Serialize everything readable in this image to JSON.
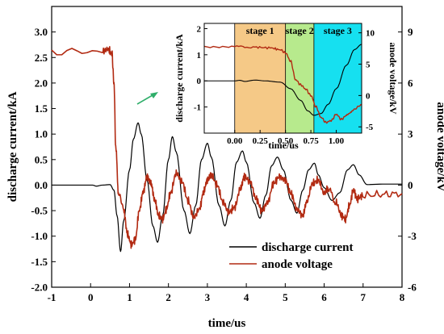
{
  "chart_data": {
    "type": "line",
    "xlabel": "time/us",
    "ylabel_left": "discharge current/kA",
    "ylabel_right": "anode voltage/kV",
    "xlim": [
      -1,
      8
    ],
    "ylim_left": [
      -2.0,
      3.5
    ],
    "ylim_right": [
      -6,
      10.5
    ],
    "x_ticks": [
      "-1",
      "0",
      "1",
      "2",
      "3",
      "4",
      "5",
      "6",
      "7",
      "8"
    ],
    "y_left_ticks": [
      "-2.0",
      "-1.5",
      "-1.0",
      "-0.5",
      "0.0",
      "0.5",
      "1.0",
      "1.5",
      "2.0",
      "2.5",
      "3.0"
    ],
    "y_right_ticks": [
      "-6",
      "-3",
      "0",
      "3",
      "6",
      "9"
    ],
    "legend": {
      "placement": "lower-right",
      "entries": [
        {
          "label": "discharge current",
          "color": "#000000"
        },
        {
          "label": "anode voltage",
          "color": "#b22a12"
        }
      ]
    },
    "series": [
      {
        "name": "discharge current",
        "axis": "left",
        "color": "#000000",
        "points": [
          [
            -1,
            0
          ],
          [
            0.05,
            0
          ],
          [
            0.15,
            -0.02
          ],
          [
            0.3,
            0
          ],
          [
            0.5,
            0.01
          ],
          [
            0.6,
            -0.1
          ],
          [
            0.68,
            -0.6
          ],
          [
            0.77,
            -1.3
          ],
          [
            0.85,
            -0.7
          ],
          [
            1.0,
            0.3
          ],
          [
            1.1,
            0.9
          ],
          [
            1.22,
            1.22
          ],
          [
            1.3,
            1.0
          ],
          [
            1.45,
            0.1
          ],
          [
            1.6,
            -0.8
          ],
          [
            1.72,
            -1.12
          ],
          [
            1.85,
            -0.6
          ],
          [
            2.0,
            0.5
          ],
          [
            2.1,
            0.95
          ],
          [
            2.2,
            0.65
          ],
          [
            2.4,
            -0.5
          ],
          [
            2.55,
            -0.95
          ],
          [
            2.7,
            -0.4
          ],
          [
            2.85,
            0.5
          ],
          [
            3.0,
            0.82
          ],
          [
            3.1,
            0.55
          ],
          [
            3.3,
            -0.4
          ],
          [
            3.45,
            -0.8
          ],
          [
            3.6,
            -0.3
          ],
          [
            3.75,
            0.45
          ],
          [
            3.9,
            0.67
          ],
          [
            4.0,
            0.45
          ],
          [
            4.2,
            -0.35
          ],
          [
            4.35,
            -0.65
          ],
          [
            4.5,
            -0.2
          ],
          [
            4.65,
            0.38
          ],
          [
            4.8,
            0.55
          ],
          [
            4.95,
            0.3
          ],
          [
            5.15,
            -0.3
          ],
          [
            5.3,
            -0.55
          ],
          [
            5.45,
            -0.1
          ],
          [
            5.6,
            0.3
          ],
          [
            5.75,
            0.43
          ],
          [
            5.85,
            0.2
          ],
          [
            6.0,
            -0.05
          ],
          [
            6.2,
            -0.3
          ],
          [
            6.4,
            -0.15
          ],
          [
            6.6,
            0.3
          ],
          [
            6.75,
            0.4
          ],
          [
            6.9,
            0.2
          ],
          [
            7.1,
            0.01
          ],
          [
            7.5,
            0.02
          ],
          [
            8,
            0.02
          ]
        ]
      },
      {
        "name": "anode voltage",
        "axis": "right",
        "color": "#b22a12",
        "points": [
          [
            -1,
            7.85
          ],
          [
            0.3,
            7.85
          ],
          [
            0.45,
            8.0
          ],
          [
            0.55,
            7.7
          ],
          [
            0.6,
            6.0
          ],
          [
            0.65,
            2.0
          ],
          [
            0.72,
            -0.5
          ],
          [
            0.85,
            -1.5
          ],
          [
            0.95,
            -2.9
          ],
          [
            1.05,
            -3.5
          ],
          [
            1.15,
            -3.2
          ],
          [
            1.25,
            -1.5
          ],
          [
            1.35,
            -0.4
          ],
          [
            1.45,
            0.5
          ],
          [
            1.55,
            0.1
          ],
          [
            1.65,
            -0.9
          ],
          [
            1.75,
            -1.8
          ],
          [
            1.85,
            -2.0
          ],
          [
            1.95,
            -1.4
          ],
          [
            2.05,
            -0.5
          ],
          [
            2.2,
            0.7
          ],
          [
            2.35,
            0.2
          ],
          [
            2.5,
            -0.9
          ],
          [
            2.65,
            -1.9
          ],
          [
            2.8,
            -1.4
          ],
          [
            2.9,
            -0.4
          ],
          [
            3.0,
            0.3
          ],
          [
            3.1,
            0.6
          ],
          [
            3.25,
            0
          ],
          [
            3.4,
            -1.0
          ],
          [
            3.55,
            -1.6
          ],
          [
            3.7,
            -1.3
          ],
          [
            3.85,
            -0.2
          ],
          [
            3.95,
            0.5
          ],
          [
            4.1,
            0.2
          ],
          [
            4.25,
            -0.8
          ],
          [
            4.4,
            -1.5
          ],
          [
            4.55,
            -1.0
          ],
          [
            4.7,
            0.1
          ],
          [
            4.85,
            0.5
          ],
          [
            5.0,
            0.3
          ],
          [
            5.15,
            -0.5
          ],
          [
            5.3,
            -1.4
          ],
          [
            5.45,
            -1.8
          ],
          [
            5.55,
            -1.0
          ],
          [
            5.7,
            0.1
          ],
          [
            5.85,
            0.3
          ],
          [
            6.0,
            -0.5
          ],
          [
            6.1,
            -0.2
          ],
          [
            6.3,
            -1.0
          ],
          [
            6.45,
            -1.8
          ],
          [
            6.55,
            -2.0
          ],
          [
            6.65,
            -1.2
          ],
          [
            6.75,
            -0.3
          ],
          [
            6.85,
            -0.8
          ],
          [
            7.0,
            -0.6
          ],
          [
            7.5,
            -0.55
          ],
          [
            8,
            -0.5
          ]
        ]
      }
    ],
    "inset": {
      "xlabel": "time/us",
      "ylabel_left": "discharge current/kA",
      "ylabel_right": "anode voltage/kV",
      "xlim": [
        -0.3,
        1.25
      ],
      "ylim_left": [
        -2,
        2.2
      ],
      "ylim_right": [
        -6,
        11.5
      ],
      "x_ticks": [
        "0.00",
        "0.25",
        "0.50",
        "0.75",
        "1.00"
      ],
      "y_left_ticks": [
        "-1",
        "0",
        "1",
        "2"
      ],
      "y_right_ticks": [
        "-5",
        "0",
        "5",
        "10"
      ],
      "stages": [
        {
          "label": "stage 1",
          "x0": 0.0,
          "x1": 0.5,
          "color": "#f5c987"
        },
        {
          "label": "stage 2",
          "x0": 0.5,
          "x1": 0.78,
          "color": "#b7ea8d"
        },
        {
          "label": "stage 3",
          "x0": 0.78,
          "x1": 1.25,
          "color": "#16e0f0"
        }
      ],
      "series": [
        {
          "name": "discharge current",
          "axis": "left",
          "color": "#000000",
          "points": [
            [
              -0.3,
              0
            ],
            [
              0.0,
              0.0
            ],
            [
              0.05,
              0.02
            ],
            [
              0.1,
              -0.02
            ],
            [
              0.2,
              0.03
            ],
            [
              0.3,
              0
            ],
            [
              0.45,
              -0.05
            ],
            [
              0.55,
              -0.3
            ],
            [
              0.65,
              -0.75
            ],
            [
              0.72,
              -1.15
            ],
            [
              0.78,
              -1.32
            ],
            [
              0.85,
              -1.25
            ],
            [
              0.92,
              -0.9
            ],
            [
              1.0,
              -0.3
            ],
            [
              1.1,
              0.6
            ],
            [
              1.18,
              1.2
            ],
            [
              1.25,
              1.4
            ]
          ]
        },
        {
          "name": "anode voltage",
          "axis": "right",
          "color": "#b22a12",
          "points": [
            [
              -0.3,
              7.8
            ],
            [
              0.0,
              7.8
            ],
            [
              0.2,
              7.7
            ],
            [
              0.35,
              7.6
            ],
            [
              0.45,
              7.3
            ],
            [
              0.5,
              6.8
            ],
            [
              0.55,
              5.5
            ],
            [
              0.6,
              2.5
            ],
            [
              0.65,
              1.7
            ],
            [
              0.7,
              1.0
            ],
            [
              0.75,
              0.0
            ],
            [
              0.8,
              -1.8
            ],
            [
              0.85,
              -3.5
            ],
            [
              0.9,
              -4.3
            ],
            [
              0.95,
              -4.0
            ],
            [
              1.0,
              -3.0
            ],
            [
              1.05,
              -3.8
            ],
            [
              1.1,
              -3.2
            ],
            [
              1.17,
              -2.3
            ],
            [
              1.25,
              -1.5
            ]
          ]
        }
      ]
    }
  }
}
